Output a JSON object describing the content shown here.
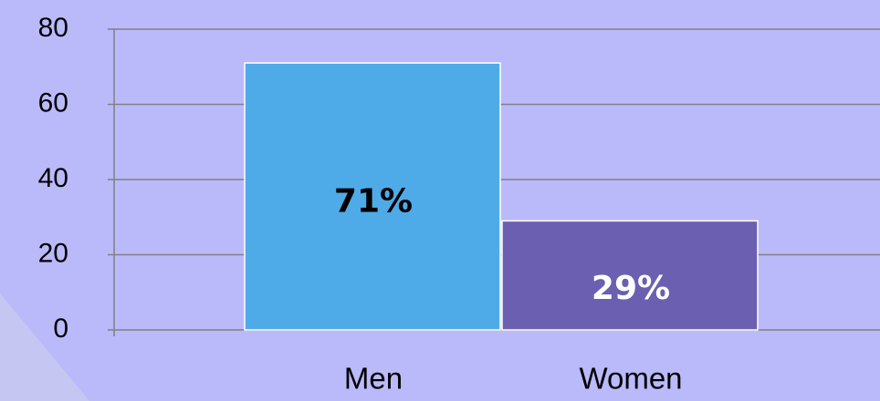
{
  "chart_data": {
    "type": "bar",
    "categories": [
      "Men",
      "Women"
    ],
    "values": [
      71,
      29
    ],
    "value_labels": [
      "71%",
      "29%"
    ],
    "colors": [
      "#4eabe8",
      "#6b5fb1"
    ],
    "ylim": [
      0,
      80
    ],
    "yticks": [
      0,
      20,
      40,
      60,
      80
    ],
    "grid": true
  }
}
